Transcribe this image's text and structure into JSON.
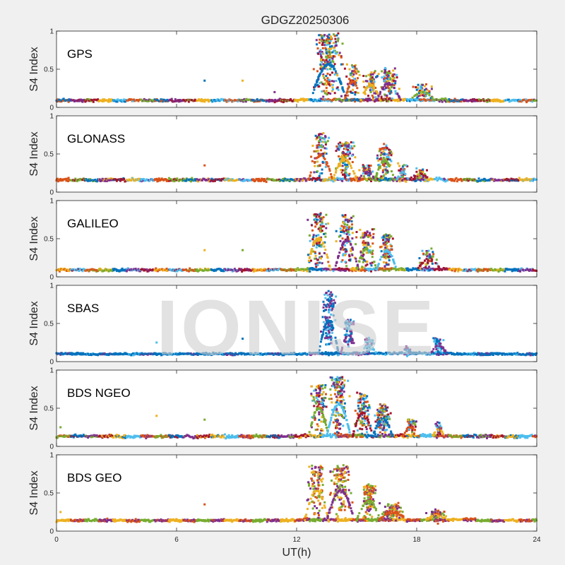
{
  "figure": {
    "title": "GDGZ20250306",
    "xlabel": "UT(h)",
    "ylabel": "S4 Index",
    "watermark": "IONISE"
  },
  "chart_data": {
    "type": "scatter",
    "title": "GDGZ20250306",
    "xlabel": "UT(h)",
    "ylabel": "S4 Index",
    "xlim": [
      0,
      24
    ],
    "ylim": [
      0,
      1
    ],
    "xticks": [
      "0",
      "6",
      "12",
      "18",
      "24"
    ],
    "yticks": [
      "0",
      "0.5",
      "1"
    ],
    "grid": false,
    "colors": [
      "#0072bd",
      "#d95319",
      "#edb120",
      "#7e2f8e",
      "#77ac30",
      "#4dbeee",
      "#a2142f"
    ],
    "panels": [
      {
        "label": "GPS",
        "colors": [
          0,
          1,
          2,
          3,
          4,
          5,
          6
        ],
        "baseline": 0.09,
        "noise": 0.025,
        "burst_start": 12.1,
        "burst_end": 19.5,
        "features": [
          {
            "x": 13.6,
            "w": 0.9,
            "level": 0.95,
            "n": 220
          },
          {
            "x": 14.8,
            "w": 0.4,
            "level": 0.55,
            "n": 60
          },
          {
            "x": 15.7,
            "w": 0.5,
            "level": 0.45,
            "n": 70
          },
          {
            "x": 16.6,
            "w": 0.6,
            "level": 0.5,
            "n": 90
          },
          {
            "x": 18.3,
            "w": 0.6,
            "level": 0.3,
            "n": 50
          }
        ],
        "outliers": [
          [
            7.4,
            0.35
          ],
          [
            9.3,
            0.35
          ],
          [
            10.9,
            0.2
          ]
        ]
      },
      {
        "label": "GLONASS",
        "colors": [
          0,
          1,
          2,
          3,
          4,
          5,
          6
        ],
        "baseline": 0.16,
        "noise": 0.03,
        "burst_start": 12.3,
        "burst_end": 19.2,
        "features": [
          {
            "x": 13.2,
            "w": 0.6,
            "level": 0.75,
            "n": 80
          },
          {
            "x": 14.4,
            "w": 0.6,
            "level": 0.65,
            "n": 110
          },
          {
            "x": 15.5,
            "w": 0.4,
            "level": 0.35,
            "n": 40
          },
          {
            "x": 16.4,
            "w": 0.5,
            "level": 0.6,
            "n": 90
          },
          {
            "x": 17.3,
            "w": 0.3,
            "level": 0.35,
            "n": 30
          },
          {
            "x": 18.2,
            "w": 0.4,
            "level": 0.3,
            "n": 30
          }
        ],
        "outliers": [
          [
            7.4,
            0.35
          ]
        ]
      },
      {
        "label": "GALILEO",
        "colors": [
          0,
          1,
          2,
          3,
          4,
          5,
          6
        ],
        "baseline": 0.09,
        "noise": 0.025,
        "burst_start": 12.0,
        "burst_end": 20.0,
        "features": [
          {
            "x": 13.1,
            "w": 0.6,
            "level": 0.85,
            "n": 120
          },
          {
            "x": 14.5,
            "w": 0.6,
            "level": 0.8,
            "n": 110
          },
          {
            "x": 15.5,
            "w": 0.5,
            "level": 0.6,
            "n": 80
          },
          {
            "x": 16.5,
            "w": 0.5,
            "level": 0.55,
            "n": 90
          },
          {
            "x": 18.6,
            "w": 0.6,
            "level": 0.35,
            "n": 50
          }
        ],
        "outliers": [
          [
            7.4,
            0.35
          ],
          [
            9.3,
            0.35
          ]
        ]
      },
      {
        "label": "SBAS",
        "colors": [
          0,
          3,
          5
        ],
        "baseline": 0.1,
        "noise": 0.02,
        "burst_start": 12.6,
        "burst_end": 19.8,
        "features": [
          {
            "x": 13.6,
            "w": 0.5,
            "level": 0.9,
            "n": 120
          },
          {
            "x": 14.6,
            "w": 0.4,
            "level": 0.55,
            "n": 60
          },
          {
            "x": 15.6,
            "w": 0.4,
            "level": 0.3,
            "n": 40
          },
          {
            "x": 17.5,
            "w": 0.3,
            "level": 0.2,
            "n": 20
          },
          {
            "x": 19.1,
            "w": 0.4,
            "level": 0.3,
            "n": 40
          }
        ],
        "outliers": [
          [
            9.3,
            0.3
          ],
          [
            5.0,
            0.25
          ]
        ]
      },
      {
        "label": "BDS NGEO",
        "colors": [
          0,
          1,
          2,
          3,
          4,
          5,
          6
        ],
        "baseline": 0.13,
        "noise": 0.03,
        "burst_start": 12.2,
        "burst_end": 19.8,
        "features": [
          {
            "x": 13.1,
            "w": 0.5,
            "level": 0.8,
            "n": 100
          },
          {
            "x": 14.1,
            "w": 0.6,
            "level": 0.9,
            "n": 150
          },
          {
            "x": 15.3,
            "w": 0.5,
            "level": 0.7,
            "n": 100
          },
          {
            "x": 16.3,
            "w": 0.5,
            "level": 0.55,
            "n": 100
          },
          {
            "x": 17.7,
            "w": 0.4,
            "level": 0.35,
            "n": 40
          },
          {
            "x": 19.1,
            "w": 0.3,
            "level": 0.3,
            "n": 30
          }
        ],
        "outliers": [
          [
            5.0,
            0.4
          ],
          [
            7.4,
            0.35
          ],
          [
            0.2,
            0.25
          ]
        ]
      },
      {
        "label": "BDS GEO",
        "colors": [
          1,
          2,
          3,
          4
        ],
        "baseline": 0.14,
        "noise": 0.025,
        "burst_start": 12.0,
        "burst_end": 21.0,
        "features": [
          {
            "x": 13.0,
            "w": 0.6,
            "level": 0.85,
            "n": 100
          },
          {
            "x": 14.2,
            "w": 0.7,
            "level": 0.85,
            "n": 130
          },
          {
            "x": 15.6,
            "w": 0.6,
            "level": 0.6,
            "n": 100
          },
          {
            "x": 16.8,
            "w": 0.7,
            "level": 0.35,
            "n": 90
          },
          {
            "x": 19.0,
            "w": 0.6,
            "level": 0.25,
            "n": 50
          }
        ],
        "outliers": [
          [
            7.4,
            0.35
          ],
          [
            0.2,
            0.25
          ]
        ]
      }
    ]
  }
}
